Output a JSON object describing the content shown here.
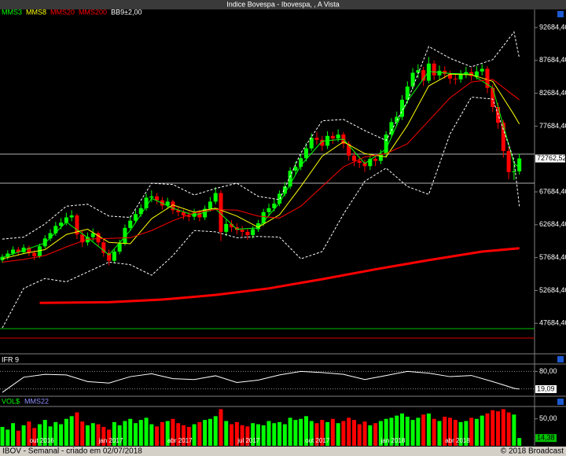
{
  "title": "Indice Bovespa - Ibovespa, , A Vista",
  "status_left": "IBOV - Semanal - criado em 02/07/2018",
  "status_right": "© 2018 Broadcast",
  "chart_data": [
    {
      "type": "candlestick",
      "up_color": "#00ff00",
      "down_color": "#ff0000",
      "candles": {
        "open": [
          57300,
          57800,
          58300,
          58900,
          58500,
          59200,
          58400,
          57900,
          59400,
          60600,
          61400,
          62500,
          63000,
          63800,
          64100,
          61200,
          60000,
          60800,
          61400,
          60000,
          58400,
          57200,
          58600,
          59800,
          62200,
          63300,
          64300,
          65200,
          66800,
          67000,
          66400,
          65600,
          66200,
          64900,
          64600,
          64100,
          63900,
          64500,
          63800,
          65100,
          66200,
          67500,
          61600,
          62800,
          62300,
          61900,
          61600,
          61100,
          62000,
          62900,
          64600,
          65200,
          65900,
          67400,
          68500,
          70900,
          71500,
          72800,
          74300,
          75900,
          75600,
          74700,
          76200,
          75800,
          76400,
          75000,
          73200,
          72400,
          72100,
          71600,
          72700,
          72400,
          73400,
          76400,
          78300,
          79100,
          81700,
          83700,
          85800,
          86200,
          84600,
          87200,
          85400,
          86100,
          85600,
          84900,
          84800,
          85500,
          85900,
          85300,
          86000,
          86400,
          83500,
          80600,
          78200,
          73900,
          70700,
          70800
        ],
        "high": [
          58200,
          58800,
          59400,
          59300,
          59700,
          59500,
          58800,
          59800,
          61100,
          62000,
          63100,
          63700,
          64500,
          64900,
          64400,
          61800,
          61500,
          62100,
          61700,
          60400,
          58900,
          59000,
          60400,
          62700,
          64000,
          64900,
          65800,
          67400,
          67900,
          67500,
          66900,
          66800,
          66500,
          65400,
          65000,
          64700,
          65100,
          64900,
          65600,
          66900,
          68400,
          67900,
          63500,
          63400,
          62900,
          62500,
          62100,
          62500,
          63400,
          65100,
          65900,
          66600,
          67900,
          69200,
          71400,
          72300,
          73500,
          75100,
          76600,
          76800,
          76200,
          76900,
          76800,
          77200,
          76800,
          75400,
          73900,
          73000,
          72600,
          73300,
          73300,
          74100,
          76900,
          78900,
          79900,
          82400,
          84500,
          86500,
          87100,
          86700,
          88200,
          87700,
          86900,
          86800,
          86100,
          85600,
          86200,
          86700,
          86500,
          86800,
          87100,
          86800,
          84000,
          81200,
          78600,
          74500,
          71900,
          73500
        ],
        "low": [
          56900,
          57400,
          58000,
          58000,
          58200,
          57900,
          57300,
          57600,
          59100,
          60200,
          61000,
          62000,
          62600,
          63200,
          60500,
          59300,
          59500,
          60200,
          59400,
          57800,
          56500,
          56800,
          58200,
          59500,
          61800,
          62900,
          63900,
          64800,
          66100,
          65800,
          65000,
          65100,
          64300,
          64000,
          63500,
          63200,
          63400,
          63200,
          63400,
          64700,
          65800,
          60200,
          61000,
          61600,
          61200,
          60900,
          60400,
          60600,
          61600,
          62500,
          64000,
          64700,
          65500,
          67000,
          68100,
          70300,
          71000,
          72300,
          73900,
          74900,
          73900,
          74200,
          75000,
          75300,
          74300,
          72400,
          71600,
          71300,
          70700,
          71000,
          71600,
          71900,
          72900,
          75900,
          77700,
          78600,
          81100,
          83200,
          85000,
          83800,
          84200,
          84700,
          84800,
          84900,
          84100,
          84000,
          84300,
          85000,
          84600,
          84800,
          85400,
          82700,
          79800,
          77300,
          72900,
          69600,
          69500,
          70300
        ],
        "close": [
          57800,
          58300,
          58900,
          58500,
          59200,
          58400,
          57900,
          59400,
          60600,
          61400,
          62500,
          63000,
          63800,
          64100,
          61200,
          60000,
          60800,
          61400,
          60000,
          58400,
          57200,
          58600,
          59800,
          62200,
          63300,
          64300,
          65200,
          66800,
          67000,
          66400,
          65600,
          66200,
          64900,
          64600,
          64100,
          63900,
          64500,
          63800,
          65100,
          66200,
          67500,
          61600,
          62800,
          62300,
          61900,
          61600,
          61100,
          62000,
          62900,
          64600,
          65200,
          65900,
          67400,
          68500,
          70900,
          71500,
          72800,
          74300,
          75900,
          75600,
          74700,
          76200,
          75800,
          76400,
          75000,
          73200,
          72400,
          72100,
          71600,
          72700,
          72400,
          73400,
          76400,
          78300,
          79100,
          81700,
          83700,
          85800,
          86200,
          84600,
          87200,
          85400,
          86100,
          85600,
          84900,
          84800,
          85500,
          85900,
          85300,
          86000,
          86400,
          83500,
          80600,
          78200,
          73900,
          70700,
          70800,
          72762.52
        ]
      },
      "series": [
        {
          "name": "MMS3",
          "color": "#00ff00",
          "x": [
            0,
            4,
            8,
            12,
            16,
            20,
            24,
            28,
            32,
            36,
            40,
            44,
            48,
            52,
            56,
            60,
            64,
            68,
            72,
            76,
            80,
            84,
            88,
            92,
            96,
            97
          ],
          "values": [
            57700,
            58800,
            59900,
            63100,
            60700,
            58100,
            61800,
            66700,
            65200,
            64100,
            65100,
            62000,
            62200,
            66000,
            71700,
            75400,
            75700,
            72000,
            74200,
            81500,
            86000,
            85700,
            85600,
            83500,
            72000,
            71400
          ]
        },
        {
          "name": "MMS8",
          "color": "#ffff00",
          "x": [
            0,
            4,
            8,
            12,
            16,
            20,
            24,
            28,
            32,
            36,
            40,
            44,
            48,
            52,
            56,
            60,
            64,
            68,
            72,
            76,
            80,
            84,
            88,
            92,
            96,
            97
          ],
          "values": [
            57500,
            58300,
            58900,
            61200,
            62000,
            60000,
            59800,
            63600,
            65700,
            64600,
            65200,
            64000,
            62300,
            64200,
            68500,
            73100,
            75300,
            73500,
            73000,
            77800,
            83800,
            85600,
            85500,
            84500,
            79400,
            78000
          ]
        },
        {
          "name": "MMS20",
          "color": "#ff0000",
          "x": [
            0,
            4,
            8,
            12,
            16,
            20,
            24,
            28,
            32,
            36,
            40,
            44,
            48,
            52,
            56,
            60,
            64,
            68,
            72,
            76,
            80,
            84,
            88,
            92,
            96,
            97
          ],
          "values": [
            57000,
            57400,
            58000,
            59300,
            60500,
            60600,
            60700,
            61800,
            63300,
            64500,
            65000,
            64900,
            64000,
            63700,
            65500,
            68500,
            71500,
            73000,
            73500,
            75000,
            78500,
            82000,
            84400,
            84800,
            82300,
            81700
          ]
        },
        {
          "name": "MMS200",
          "color": "#ff0000",
          "width": 3,
          "x": [
            7,
            20,
            30,
            40,
            50,
            60,
            70,
            80,
            90,
            97
          ],
          "values": [
            50800,
            50900,
            51300,
            52000,
            53000,
            54400,
            55900,
            57300,
            58600,
            59100
          ]
        },
        {
          "name": "BB9±2,00",
          "color": "#ffffff",
          "dashed": true,
          "x": [
            0,
            4,
            8,
            12,
            16,
            20,
            24,
            28,
            32,
            36,
            40,
            44,
            48,
            52,
            56,
            60,
            64,
            68,
            72,
            76,
            80,
            84,
            88,
            92,
            96,
            97
          ],
          "upper": [
            60500,
            60800,
            62800,
            65500,
            65800,
            64000,
            63800,
            69000,
            68800,
            67200,
            68200,
            69000,
            67000,
            66500,
            73600,
            78500,
            78700,
            77000,
            75500,
            81500,
            89800,
            88000,
            86700,
            87800,
            92000,
            88000
          ],
          "lower": [
            47000,
            53000,
            54500,
            54000,
            55500,
            57000,
            56600,
            55000,
            58000,
            61800,
            61600,
            60700,
            60900,
            60800,
            57500,
            58600,
            64300,
            69300,
            71300,
            68500,
            67300,
            76500,
            82100,
            81800,
            72500,
            65500
          ]
        }
      ],
      "reference_lines": [
        {
          "value": 73430,
          "color": "#b0b0b0"
        },
        {
          "value": 69000,
          "color": "#b0b0b0"
        },
        {
          "value": 46880,
          "color": "#00c000"
        },
        {
          "value": 45440,
          "color": "#e00000"
        }
      ],
      "last_price": {
        "value": 72762.52,
        "label": "72762,52"
      },
      "ylim": [
        43050,
        95435
      ],
      "yticks": [
        {
          "value": 92684.4,
          "label": "92684,40"
        },
        {
          "value": 87684.4,
          "label": "87684,40"
        },
        {
          "value": 82684.4,
          "label": "82684,40"
        },
        {
          "value": 77684.4,
          "label": "77684,40"
        },
        {
          "value": 67684.4,
          "label": "67684,40"
        },
        {
          "value": 62684.4,
          "label": "62684,40"
        },
        {
          "value": 57684.4,
          "label": "57684,40"
        },
        {
          "value": 52684.4,
          "label": "52684,40"
        },
        {
          "value": 47684.4,
          "label": "47684,40"
        }
      ]
    },
    {
      "type": "line",
      "title": "IFR 9",
      "color": "#ffffff",
      "x": [
        0,
        4,
        8,
        12,
        16,
        20,
        24,
        28,
        32,
        36,
        40,
        44,
        48,
        52,
        56,
        60,
        64,
        68,
        72,
        76,
        80,
        84,
        88,
        92,
        96,
        97
      ],
      "values": [
        8,
        60,
        70,
        68,
        45,
        40,
        62,
        72,
        55,
        52,
        65,
        42,
        50,
        68,
        80,
        76,
        70,
        52,
        66,
        80,
        74,
        62,
        66,
        45,
        22,
        19.09
      ],
      "levels": [
        80,
        20
      ],
      "last_label": {
        "value": 19.09,
        "label": "19,09"
      },
      "ylim": [
        0,
        100
      ],
      "yticks": [
        {
          "value": 80,
          "label": "80,00"
        }
      ]
    },
    {
      "type": "bar",
      "legend": [
        {
          "name": "VOL$",
          "color": "#00ff00"
        },
        {
          "name": "MMS22",
          "color": "#9090ff"
        }
      ],
      "values": [
        35,
        30,
        42,
        28,
        38,
        45,
        33,
        40,
        48,
        36,
        44,
        40,
        50,
        55,
        62,
        45,
        38,
        42,
        40,
        35,
        30,
        44,
        38,
        46,
        50,
        42,
        48,
        52,
        40,
        36,
        44,
        46,
        50,
        42,
        38,
        35,
        40,
        44,
        48,
        50,
        55,
        68,
        46,
        40,
        44,
        38,
        36,
        42,
        40,
        38,
        46,
        42,
        44,
        40,
        52,
        48,
        50,
        55,
        46,
        42,
        48,
        44,
        50,
        42,
        46,
        52,
        48,
        40,
        45,
        38,
        42,
        46,
        50,
        52,
        56,
        60,
        54,
        48,
        52,
        58,
        60,
        50,
        46,
        54,
        52,
        48,
        44,
        46,
        52,
        50,
        56,
        60,
        66,
        64,
        68,
        62,
        58,
        14.38
      ],
      "last_label": {
        "value": 14.38,
        "label": "14,38"
      },
      "ylim": [
        0,
        73
      ],
      "yticks": [
        {
          "value": 50,
          "label": "50,00"
        }
      ],
      "xticks": [
        {
          "value": 7.4,
          "label": "out 2016"
        },
        {
          "value": 20.35,
          "label": "jan 2017"
        },
        {
          "value": 33.3,
          "label": "abr 2017"
        },
        {
          "value": 46.2,
          "label": "jul 2017"
        },
        {
          "value": 59.1,
          "label": "out 2017"
        },
        {
          "value": 73.3,
          "label": "jan 2018"
        },
        {
          "value": 85.4,
          "label": "abr 2018"
        }
      ]
    }
  ]
}
